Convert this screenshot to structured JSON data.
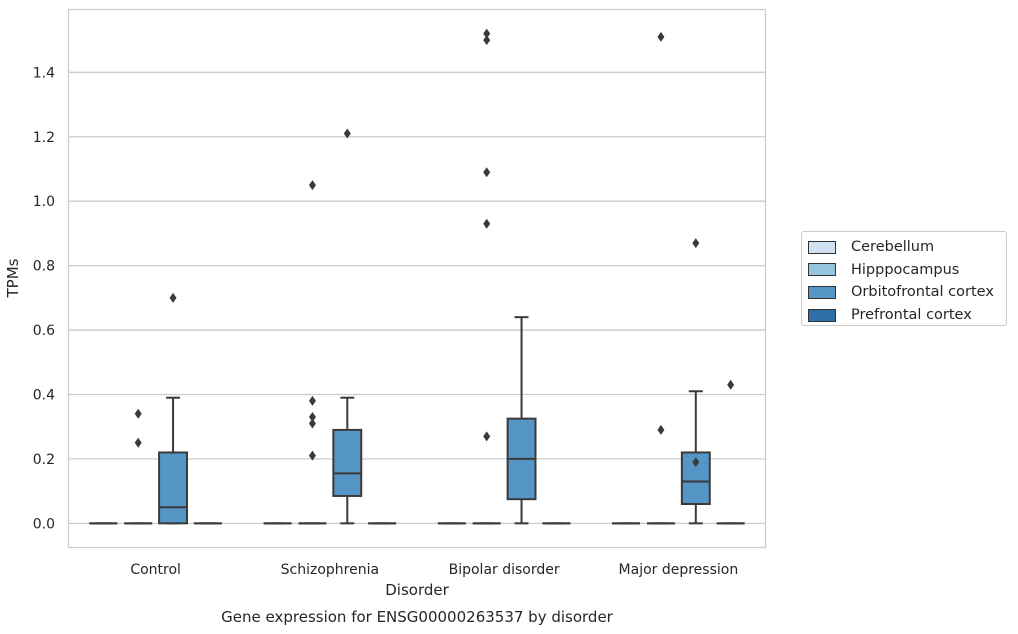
{
  "chart_data": {
    "type": "box",
    "title": "Gene expression for ENSG00000263537 by disorder",
    "xlabel": "Disorder",
    "ylabel": "TPMs",
    "ylim": [
      -0.075,
      1.595
    ],
    "yticks": [
      "0.0",
      "0.2",
      "0.4",
      "0.6",
      "0.8",
      "1.0",
      "1.2",
      "1.4"
    ],
    "categories": [
      "Control",
      "Schizophrenia",
      "Bipolar disorder",
      "Major depression"
    ],
    "grid": "horizontal",
    "legend_position": "right",
    "series": [
      {
        "name": "Cerebellum",
        "color": "#d0e1f2",
        "boxes": [
          {
            "category": "Control",
            "q1": 0,
            "median": 0,
            "q3": 0,
            "whisker_low": 0,
            "whisker_high": 0,
            "outliers": []
          },
          {
            "category": "Schizophrenia",
            "q1": 0,
            "median": 0,
            "q3": 0,
            "whisker_low": 0,
            "whisker_high": 0,
            "outliers": []
          },
          {
            "category": "Bipolar disorder",
            "q1": 0,
            "median": 0,
            "q3": 0,
            "whisker_low": 0,
            "whisker_high": 0,
            "outliers": []
          },
          {
            "category": "Major depression",
            "q1": 0,
            "median": 0,
            "q3": 0,
            "whisker_low": 0,
            "whisker_high": 0,
            "outliers": []
          }
        ]
      },
      {
        "name": "Hipppocampus",
        "color": "#94c4df",
        "boxes": [
          {
            "category": "Control",
            "q1": 0,
            "median": 0,
            "q3": 0,
            "whisker_low": 0,
            "whisker_high": 0,
            "outliers": [
              0.34,
              0.25
            ]
          },
          {
            "category": "Schizophrenia",
            "q1": 0,
            "median": 0,
            "q3": 0,
            "whisker_low": 0,
            "whisker_high": 0,
            "outliers": [
              0.38,
              0.21,
              0.33,
              0.31,
              1.05
            ]
          },
          {
            "category": "Bipolar disorder",
            "q1": 0,
            "median": 0,
            "q3": 0,
            "whisker_low": 0,
            "whisker_high": 0,
            "outliers": [
              0.27,
              0.93,
              1.09,
              1.5,
              1.52
            ]
          },
          {
            "category": "Major depression",
            "q1": 0,
            "median": 0,
            "q3": 0,
            "whisker_low": 0,
            "whisker_high": 0,
            "outliers": [
              0.29,
              1.51
            ]
          }
        ]
      },
      {
        "name": "Orbitofrontal cortex",
        "color": "#5596c7",
        "boxes": [
          {
            "category": "Control",
            "q1": 0.0,
            "median": 0.05,
            "q3": 0.22,
            "whisker_low": 0,
            "whisker_high": 0.39,
            "outliers": [
              0.7
            ]
          },
          {
            "category": "Schizophrenia",
            "q1": 0.085,
            "median": 0.155,
            "q3": 0.29,
            "whisker_low": 0,
            "whisker_high": 0.39,
            "outliers": [
              1.21
            ]
          },
          {
            "category": "Bipolar disorder",
            "q1": 0.075,
            "median": 0.2,
            "q3": 0.325,
            "whisker_low": 0,
            "whisker_high": 0.64,
            "outliers": []
          },
          {
            "category": "Major depression",
            "q1": 0.06,
            "median": 0.13,
            "q3": 0.22,
            "whisker_low": 0,
            "whisker_high": 0.41,
            "outliers": [
              0.19,
              0.87
            ]
          }
        ]
      },
      {
        "name": "Prefrontal cortex",
        "color": "#2e6fa8",
        "boxes": [
          {
            "category": "Control",
            "q1": 0,
            "median": 0,
            "q3": 0,
            "whisker_low": 0,
            "whisker_high": 0,
            "outliers": []
          },
          {
            "category": "Schizophrenia",
            "q1": 0,
            "median": 0,
            "q3": 0,
            "whisker_low": 0,
            "whisker_high": 0,
            "outliers": []
          },
          {
            "category": "Bipolar disorder",
            "q1": 0,
            "median": 0,
            "q3": 0,
            "whisker_low": 0,
            "whisker_high": 0,
            "outliers": []
          },
          {
            "category": "Major depression",
            "q1": 0,
            "median": 0,
            "q3": 0,
            "whisker_low": 0,
            "whisker_high": 0,
            "outliers": [
              0.43
            ]
          }
        ]
      }
    ]
  }
}
